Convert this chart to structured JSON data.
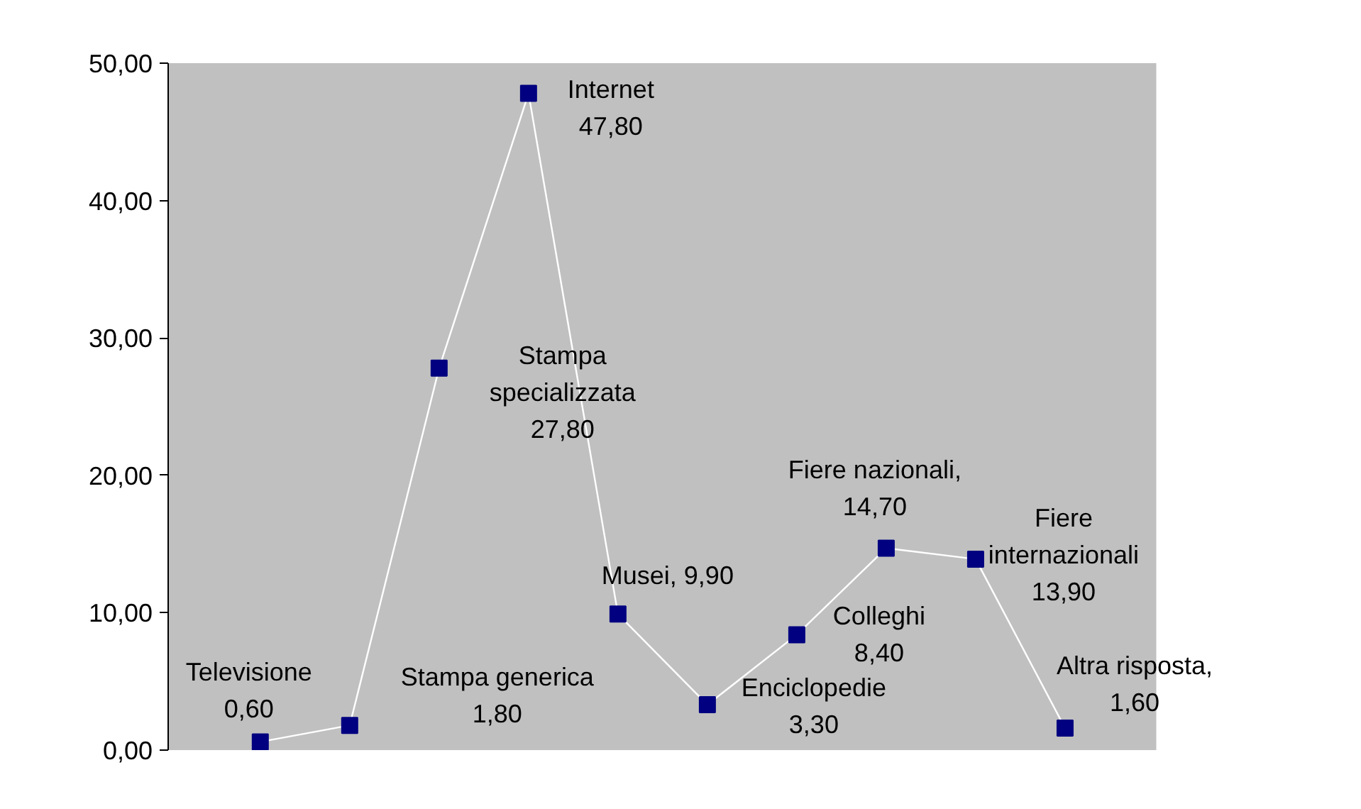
{
  "chart_data": {
    "type": "line",
    "categories": [
      null,
      null,
      null,
      null,
      null,
      null,
      null,
      null,
      null,
      null
    ],
    "series": [
      {
        "color": "#ffffff",
        "colors": [
          "#000080",
          "#000080",
          "#000080",
          "#000080",
          "#000080",
          "#000080",
          "#000080",
          "#000080",
          "#000080",
          "#000080"
        ],
        "values": [
          0.6,
          1.8,
          27.8,
          47.8,
          9.9,
          3.3,
          8.4,
          14.7,
          13.9,
          1.6
        ]
      }
    ],
    "value_labels": [
      "Televisione\n0,60",
      "Stampa generica\n1,80",
      "Stampa\nspecializzata\n27,80",
      "Internet\n47,80",
      "Musei, 9,90",
      "Enciclopedie\n3,30",
      "Colleghi\n8,40",
      "Fiere nazionali,\n14,70",
      "Fiere\ninternazionali\n13,90",
      "Altra risposta,\n1,60"
    ],
    "ylim": [
      0,
      50
    ],
    "yticks": [
      {
        "value": 0,
        "label": "0,00"
      },
      {
        "value": 10,
        "label": "10,00"
      },
      {
        "value": 20,
        "label": "20,00"
      },
      {
        "value": 30,
        "label": "30,00"
      },
      {
        "value": 40,
        "label": "40,00"
      },
      {
        "value": 50,
        "label": "50,00"
      }
    ],
    "marker": "square",
    "grid": false
  }
}
